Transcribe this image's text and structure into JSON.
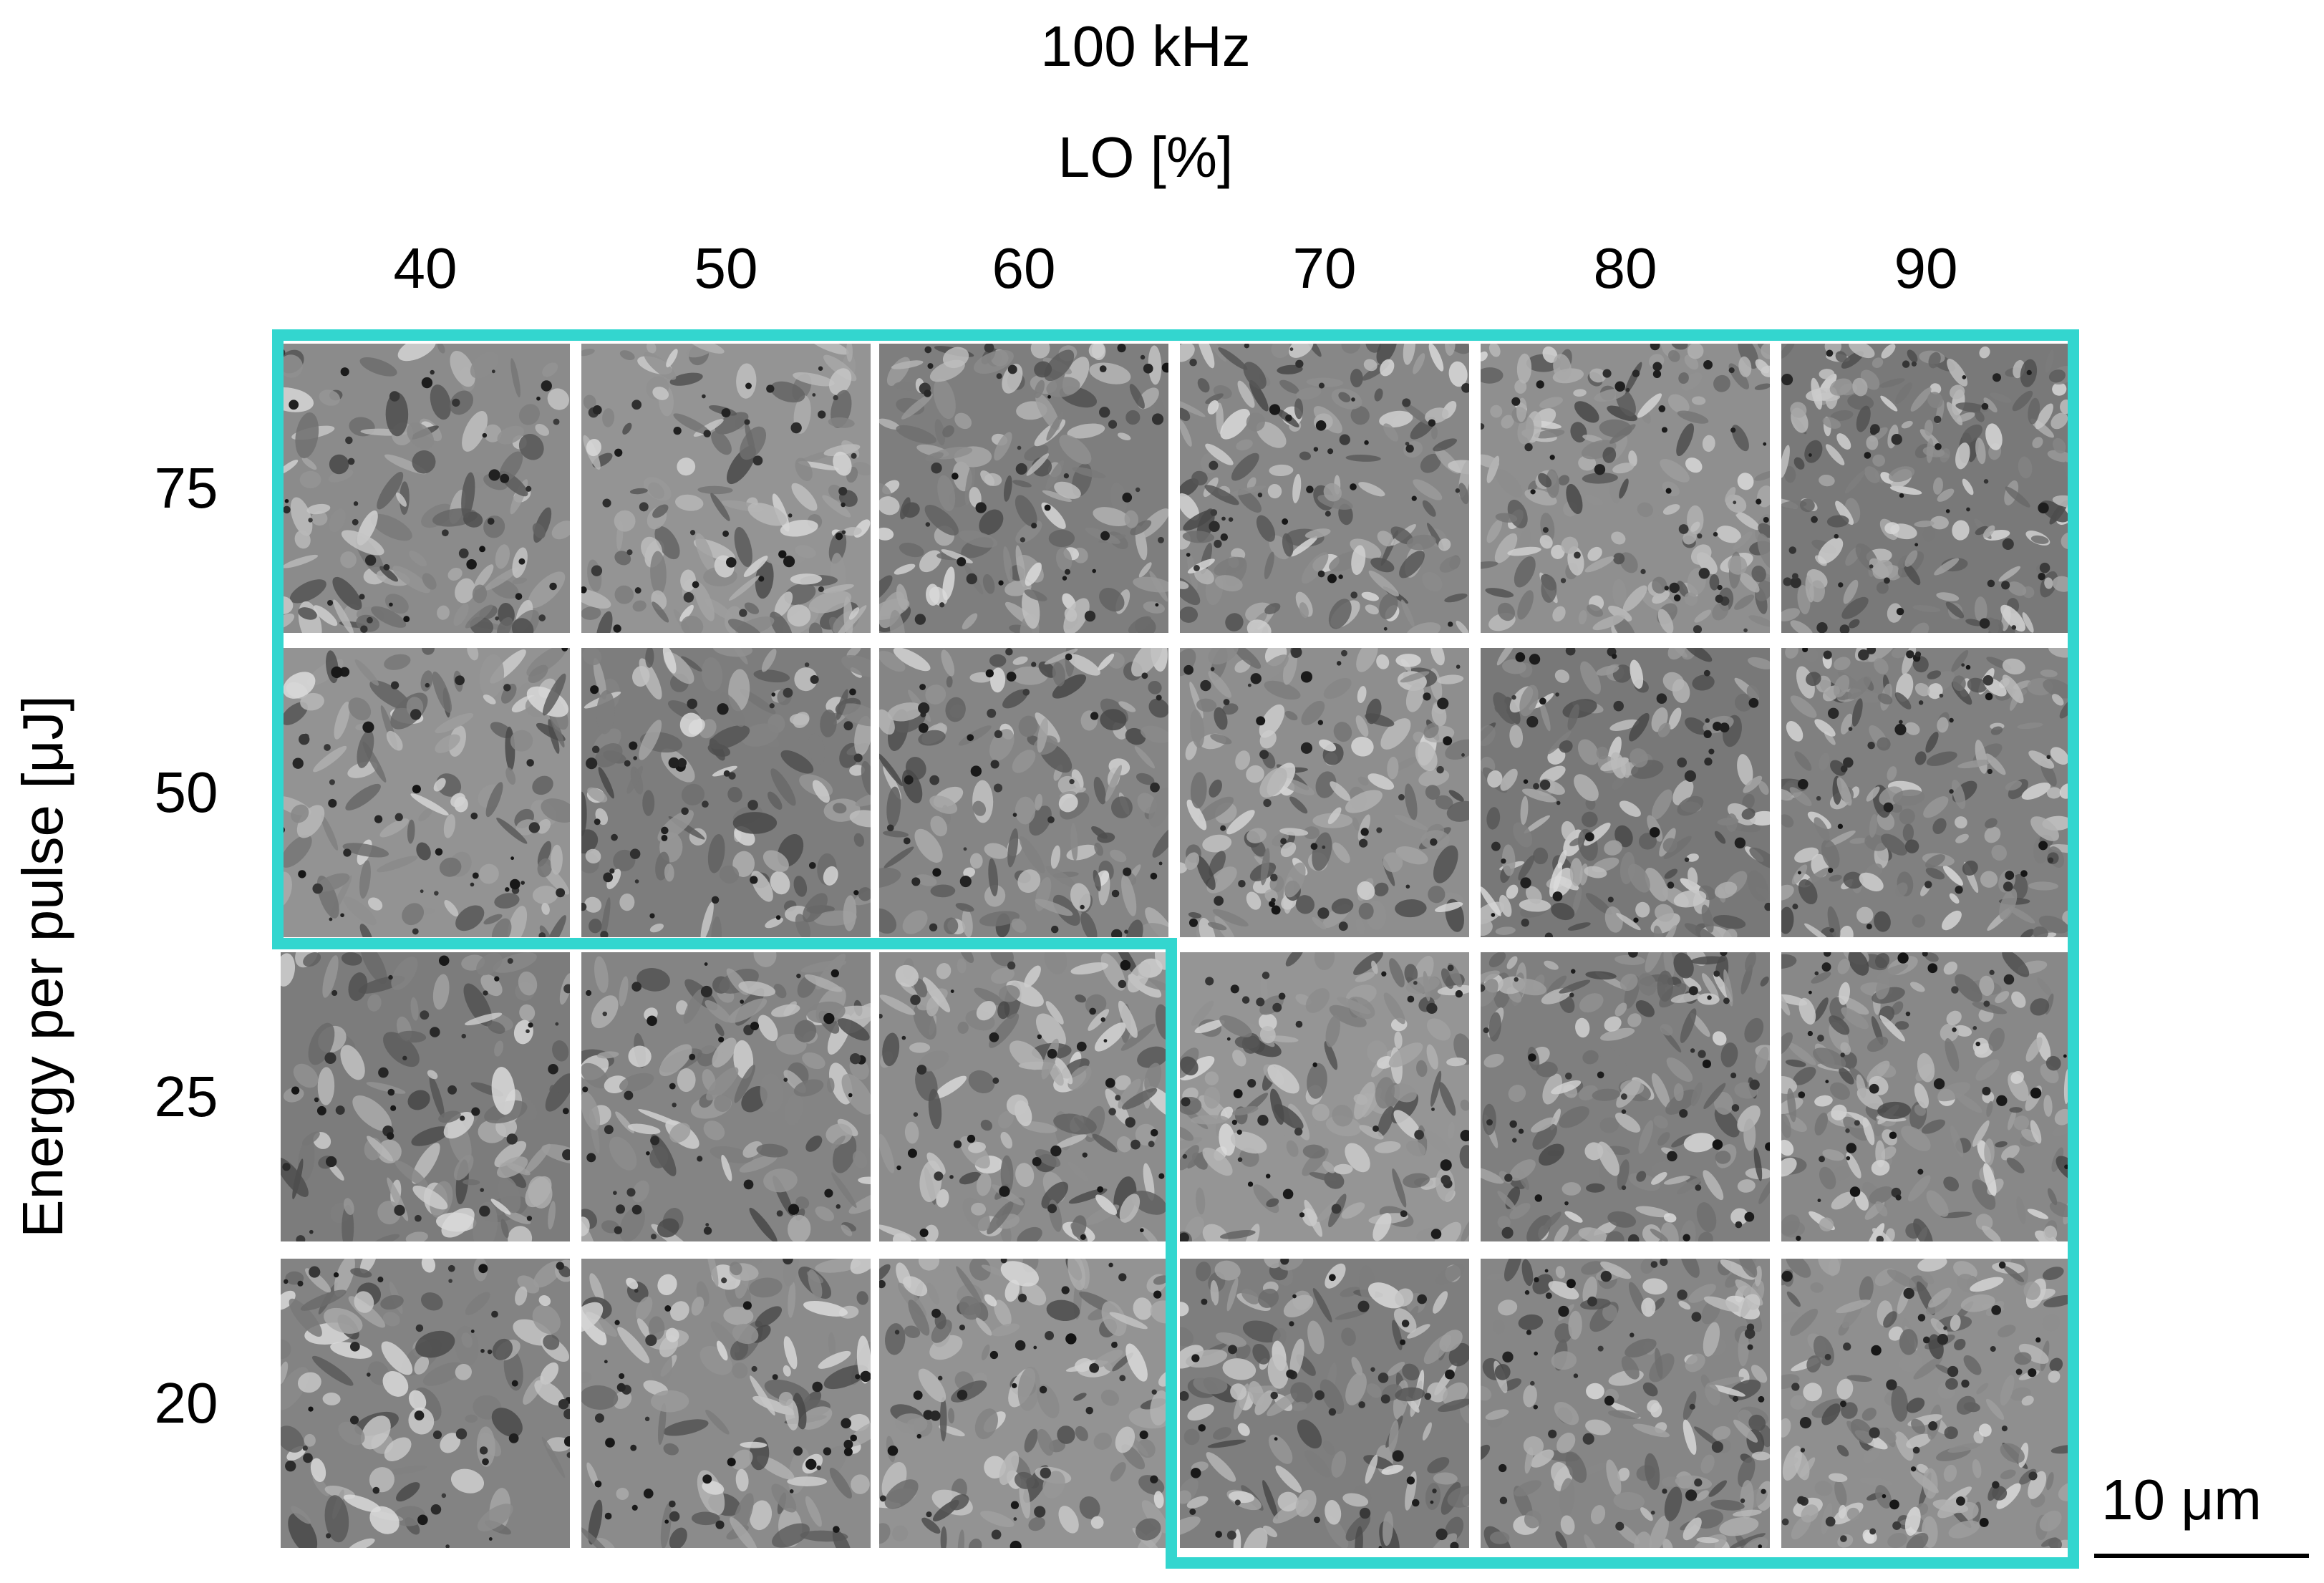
{
  "header": {
    "frequency": "100 kHz",
    "x_axis_title": "LO [%]"
  },
  "columns": [
    "40",
    "50",
    "60",
    "70",
    "80",
    "90"
  ],
  "rows": [
    "75",
    "50",
    "25",
    "20"
  ],
  "y_axis_title": "Energy per pulse [μJ]",
  "scale_bar": {
    "label": "10 μm"
  },
  "colors": {
    "highlight_outline": "#33d6cf",
    "background": "#ffffff"
  },
  "image_description_tiles": "SEM micrographs of laser-textured surface, 4 rows x 6 columns"
}
